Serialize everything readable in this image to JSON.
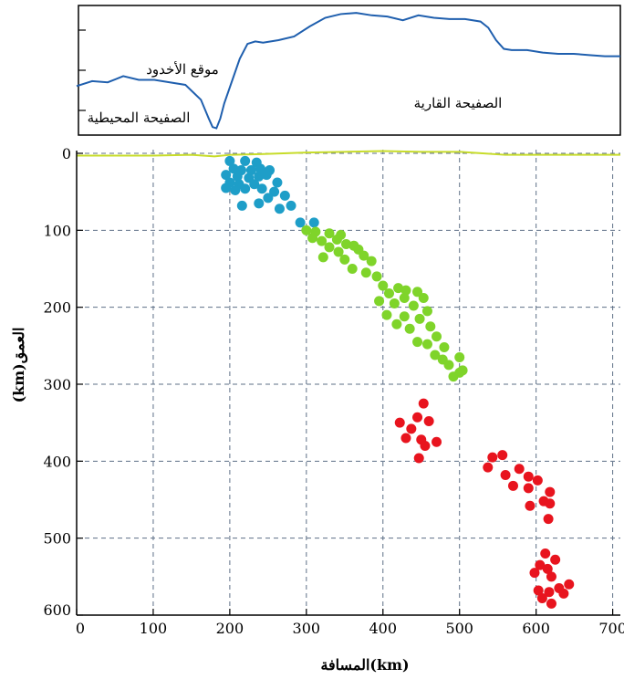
{
  "chart_data": [
    {
      "type": "line",
      "panel": "topography-profile",
      "annotations": [
        "موقع الأخدود",
        "الصفيحة المحيطية",
        "الصفيحة القارية"
      ],
      "x": [
        0,
        20,
        40,
        60,
        80,
        100,
        120,
        140,
        150,
        160,
        170,
        175,
        180,
        185,
        190,
        200,
        210,
        220,
        230,
        240,
        260,
        280,
        300,
        320,
        340,
        360,
        380,
        400,
        420,
        440,
        460,
        480,
        500,
        520,
        530,
        540,
        550,
        560,
        580,
        600,
        620,
        640,
        660,
        680,
        700
      ],
      "y": [
        0.38,
        0.42,
        0.41,
        0.46,
        0.43,
        0.43,
        0.41,
        0.39,
        0.33,
        0.27,
        0.12,
        0.05,
        0.04,
        0.12,
        0.24,
        0.42,
        0.6,
        0.72,
        0.74,
        0.73,
        0.75,
        0.78,
        0.86,
        0.93,
        0.96,
        0.97,
        0.95,
        0.94,
        0.91,
        0.95,
        0.93,
        0.92,
        0.92,
        0.9,
        0.85,
        0.75,
        0.68,
        0.67,
        0.67,
        0.65,
        0.64,
        0.64,
        0.63,
        0.62,
        0.62
      ],
      "color": "#1f5fae"
    },
    {
      "type": "scatter",
      "panel": "earthquake-depth",
      "xlabel": "(km)المسافة",
      "ylabel": "العمق(km)",
      "xlim": [
        0,
        710
      ],
      "ylim": [
        600,
        0
      ],
      "xticks": [
        0,
        100,
        200,
        300,
        400,
        500,
        600,
        700
      ],
      "yticks": [
        0,
        100,
        200,
        300,
        400,
        500,
        600
      ],
      "grid": true,
      "series": [
        {
          "color": "#1e9ec8",
          "points": [
            [
              200,
              10
            ],
            [
              220,
              10
            ],
            [
              235,
              12
            ],
            [
              205,
              20
            ],
            [
              215,
              22
            ],
            [
              228,
              22
            ],
            [
              240,
              20
            ],
            [
              252,
              22
            ],
            [
              195,
              28
            ],
            [
              210,
              30
            ],
            [
              225,
              32
            ],
            [
              238,
              30
            ],
            [
              248,
              28
            ],
            [
              200,
              38
            ],
            [
              212,
              40
            ],
            [
              232,
              40
            ],
            [
              262,
              38
            ],
            [
              195,
              45
            ],
            [
              207,
              48
            ],
            [
              220,
              46
            ],
            [
              242,
              46
            ],
            [
              258,
              50
            ],
            [
              272,
              55
            ],
            [
              250,
              58
            ],
            [
              238,
              65
            ],
            [
              216,
              68
            ],
            [
              280,
              68
            ],
            [
              265,
              72
            ],
            [
              292,
              90
            ],
            [
              310,
              90
            ]
          ]
        },
        {
          "color": "#7fd42a",
          "points": [
            [
              300,
              100
            ],
            [
              312,
              102
            ],
            [
              330,
              104
            ],
            [
              345,
              106
            ],
            [
              308,
              110
            ],
            [
              320,
              114
            ],
            [
              340,
              112
            ],
            [
              352,
              118
            ],
            [
              330,
              122
            ],
            [
              362,
              120
            ],
            [
              342,
              128
            ],
            [
              368,
              125
            ],
            [
              375,
              133
            ],
            [
              322,
              135
            ],
            [
              350,
              138
            ],
            [
              385,
              140
            ],
            [
              360,
              150
            ],
            [
              378,
              155
            ],
            [
              392,
              160
            ],
            [
              400,
              172
            ],
            [
              420,
              175
            ],
            [
              430,
              178
            ],
            [
              445,
              180
            ],
            [
              408,
              182
            ],
            [
              428,
              188
            ],
            [
              453,
              188
            ],
            [
              395,
              192
            ],
            [
              415,
              195
            ],
            [
              440,
              198
            ],
            [
              458,
              205
            ],
            [
              405,
              210
            ],
            [
              428,
              212
            ],
            [
              448,
              215
            ],
            [
              418,
              222
            ],
            [
              462,
              225
            ],
            [
              435,
              228
            ],
            [
              470,
              238
            ],
            [
              445,
              245
            ],
            [
              458,
              248
            ],
            [
              480,
              252
            ],
            [
              468,
              262
            ],
            [
              478,
              268
            ],
            [
              500,
              265
            ],
            [
              486,
              275
            ],
            [
              500,
              285
            ],
            [
              492,
              290
            ],
            [
              504,
              282
            ]
          ]
        },
        {
          "color": "#e8141e",
          "points": [
            [
              453,
              325
            ],
            [
              445,
              343
            ],
            [
              422,
              350
            ],
            [
              460,
              348
            ],
            [
              437,
              358
            ],
            [
              450,
              372
            ],
            [
              470,
              375
            ],
            [
              430,
              370
            ],
            [
              455,
              380
            ],
            [
              543,
              395
            ],
            [
              447,
              396
            ],
            [
              556,
              392
            ],
            [
              537,
              408
            ],
            [
              560,
              418
            ],
            [
              578,
              410
            ],
            [
              590,
              420
            ],
            [
              602,
              425
            ],
            [
              570,
              432
            ],
            [
              590,
              435
            ],
            [
              618,
              440
            ],
            [
              610,
              452
            ],
            [
              592,
              458
            ],
            [
              618,
              455
            ],
            [
              616,
              475
            ],
            [
              612,
              520
            ],
            [
              605,
              535
            ],
            [
              625,
              528
            ],
            [
              615,
              540
            ],
            [
              598,
              545
            ],
            [
              620,
              550
            ],
            [
              643,
              560
            ],
            [
              630,
              565
            ],
            [
              603,
              568
            ],
            [
              617,
              570
            ],
            [
              636,
              572
            ],
            [
              608,
              578
            ],
            [
              620,
              585
            ]
          ]
        }
      ],
      "surface_line": {
        "color": "#c7dc2a",
        "x": [
          0,
          100,
          150,
          180,
          200,
          240,
          300,
          350,
          400,
          450,
          500,
          530,
          560,
          620,
          710
        ],
        "y": [
          3,
          3,
          2,
          4,
          2,
          1,
          -1,
          -2,
          -3,
          -2,
          -2,
          0,
          2,
          2,
          2
        ]
      }
    }
  ]
}
